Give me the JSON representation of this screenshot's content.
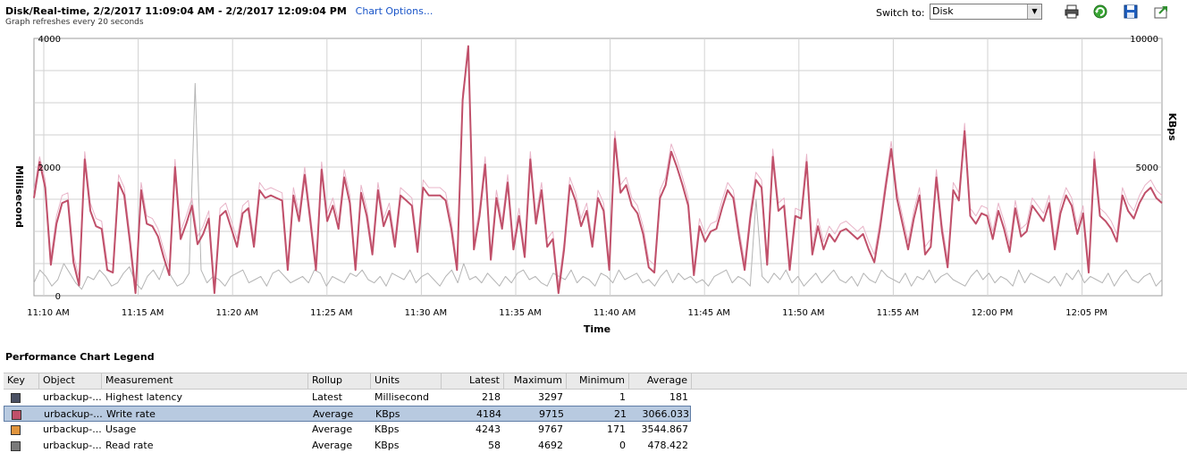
{
  "header": {
    "title": "Disk/Real-time, 2/2/2017 11:09:04 AM - 2/2/2017 12:09:04 PM",
    "chart_options_link": "Chart Options...",
    "subtitle": "Graph refreshes every 20 seconds",
    "switch_to_label": "Switch to:",
    "switch_to_value": "Disk"
  },
  "toolbar": {
    "icons": [
      "print-icon",
      "refresh-icon",
      "save-icon",
      "export-icon"
    ]
  },
  "chart_data": {
    "type": "line",
    "xlabel": "Time",
    "ylabel_left": "Millisecond",
    "ylabel_right": "KBps",
    "ylim_left": [
      0,
      4000
    ],
    "ylim_right": [
      0,
      10000
    ],
    "left_ticks": [
      "0",
      "2000",
      "4000"
    ],
    "right_ticks": [
      "5000",
      "10000"
    ],
    "x_ticks": [
      "11:10 AM",
      "11:15 AM",
      "11:20 AM",
      "11:25 AM",
      "11:30 AM",
      "11:35 AM",
      "11:40 AM",
      "11:45 AM",
      "11:50 AM",
      "11:55 AM",
      "12:00 PM",
      "12:05 PM"
    ],
    "grid": true,
    "series": [
      {
        "color": "#c0506a",
        "axis": "right",
        "values": [
          3800,
          5200,
          4200,
          1200,
          2800,
          3600,
          3700,
          1300,
          400,
          5300,
          3300,
          2700,
          2600,
          1000,
          900,
          4400,
          3900,
          2100,
          100,
          4100,
          2800,
          2700,
          2300,
          1500,
          800,
          5000,
          2200,
          2800,
          3500,
          2000,
          2400,
          3000,
          100,
          3100,
          3300,
          2600,
          1900,
          3200,
          3400,
          1900,
          4100,
          3800,
          3900,
          3800,
          3700,
          1000,
          3900,
          2900,
          4700,
          2900,
          1000,
          4900,
          2900,
          3500,
          2600,
          4600,
          3600,
          1000,
          4000,
          3100,
          1600,
          4100,
          2700,
          3300,
          1900,
          3900,
          3700,
          3500,
          1700,
          4200,
          3900,
          3900,
          3900,
          3700,
          2600,
          1000,
          7600,
          9700,
          1800,
          3100,
          5100,
          1400,
          3800,
          2600,
          4400,
          1800,
          3100,
          1500,
          5300,
          2800,
          4100,
          1900,
          2200,
          100,
          1800,
          4300,
          3700,
          2700,
          3300,
          1900,
          3800,
          3300,
          1000,
          6100,
          4000,
          4300,
          3500,
          3200,
          2400,
          1100,
          900,
          3800,
          4300,
          5600,
          5000,
          4300,
          3500,
          800,
          2700,
          2100,
          2500,
          2600,
          3400,
          4100,
          3800,
          2300,
          1000,
          3000,
          4500,
          4200,
          1200,
          5400,
          3300,
          3500,
          1000,
          3100,
          3000,
          5200,
          1600,
          2700,
          1800,
          2400,
          2100,
          2500,
          2600,
          2400,
          2200,
          2400,
          1800,
          1300,
          2600,
          4200,
          5700,
          3800,
          2800,
          1800,
          3000,
          3900,
          1600,
          1900,
          4600,
          2500,
          1100,
          4100,
          3700,
          6400,
          3100,
          2800,
          3200,
          3100,
          2200,
          3300,
          2600,
          1700,
          3400,
          2300,
          2500,
          3500,
          3200,
          2900,
          3600,
          1800,
          3200,
          3900,
          3500,
          2400,
          3200,
          900,
          5300,
          3100,
          2900,
          2600,
          2100,
          3900,
          3300,
          3000,
          3600,
          4000,
          4200,
          3800,
          3600
        ]
      },
      {
        "color": "#e8b4c8",
        "axis": "right",
        "values": [
          4100,
          5400,
          4500,
          1500,
          3100,
          3900,
          4000,
          1600,
          700,
          5600,
          3600,
          3000,
          2900,
          1300,
          1200,
          4700,
          4200,
          2400,
          400,
          4400,
          3100,
          3000,
          2600,
          1800,
          1100,
          5300,
          2500,
          3100,
          3800,
          2300,
          2700,
          3300,
          400,
          3400,
          3600,
          2900,
          2200,
          3500,
          3700,
          2200,
          4400,
          4100,
          4200,
          4100,
          4000,
          1300,
          4200,
          3200,
          5000,
          3200,
          1300,
          5200,
          3200,
          3800,
          2900,
          4900,
          3900,
          1300,
          4300,
          3400,
          1900,
          4400,
          3000,
          3600,
          2200,
          4200,
          4000,
          3800,
          2000,
          4500,
          4200,
          4200,
          4200,
          4000,
          2900,
          1300,
          7900,
          9500,
          2100,
          3400,
          5400,
          1700,
          4100,
          2900,
          4700,
          2100,
          3400,
          1800,
          5600,
          3100,
          4400,
          2200,
          2500,
          400,
          2100,
          4600,
          4000,
          3000,
          3600,
          2200,
          4100,
          3600,
          1300,
          6400,
          4300,
          4600,
          3800,
          3500,
          2700,
          1400,
          1200,
          4100,
          4600,
          5900,
          5300,
          4600,
          3800,
          1100,
          3000,
          2400,
          2800,
          2900,
          3700,
          4400,
          4100,
          2600,
          1300,
          3300,
          4800,
          4500,
          1500,
          5700,
          3600,
          3800,
          1300,
          3400,
          3300,
          5500,
          1900,
          3000,
          2100,
          2700,
          2400,
          2800,
          2900,
          2700,
          2500,
          2700,
          2100,
          1600,
          2900,
          4500,
          6000,
          4100,
          3100,
          2100,
          3300,
          4200,
          1900,
          2200,
          4900,
          2800,
          1400,
          4400,
          4000,
          6700,
          3400,
          3100,
          3500,
          3400,
          2500,
          3600,
          2900,
          2000,
          3700,
          2600,
          2800,
          3800,
          3500,
          3200,
          3900,
          2100,
          3500,
          4200,
          3800,
          2700,
          3500,
          1200,
          5600,
          3400,
          3200,
          2900,
          2400,
          4200,
          3600,
          3300,
          3900,
          4300,
          4500,
          4100,
          3900
        ]
      },
      {
        "color": "#b4b4b4",
        "axis": "left",
        "values": [
          200,
          400,
          300,
          150,
          250,
          500,
          350,
          200,
          100,
          300,
          250,
          400,
          300,
          150,
          200,
          350,
          450,
          200,
          100,
          300,
          400,
          250,
          500,
          300,
          150,
          200,
          350,
          3300,
          400,
          200,
          300,
          250,
          150,
          300,
          350,
          400,
          200,
          250,
          300,
          150,
          350,
          400,
          300,
          200,
          250,
          300,
          200,
          400,
          350,
          150,
          300,
          250,
          200,
          350,
          300,
          400,
          250,
          200,
          300,
          150,
          350,
          300,
          250,
          400,
          200,
          300,
          350,
          250,
          150,
          300,
          400,
          200,
          500,
          250,
          300,
          200,
          350,
          250,
          150,
          300,
          200,
          350,
          400,
          250,
          300,
          200,
          150,
          350,
          300,
          250,
          400,
          200,
          300,
          250,
          150,
          350,
          300,
          200,
          400,
          250,
          300,
          350,
          200,
          250,
          150,
          300,
          400,
          200,
          350,
          250,
          300,
          200,
          250,
          150,
          300,
          350,
          400,
          200,
          300,
          250,
          150,
          1500,
          300,
          200,
          350,
          250,
          400,
          200,
          300,
          150,
          250,
          350,
          200,
          300,
          400,
          250,
          200,
          300,
          150,
          350,
          250,
          200,
          400,
          300,
          250,
          200,
          350,
          150,
          300,
          250,
          400,
          200,
          300,
          350,
          250,
          200,
          150,
          300,
          400,
          250,
          350,
          200,
          300,
          250,
          150,
          400,
          200,
          350,
          300,
          250,
          200,
          300,
          150,
          350,
          250,
          400,
          200,
          300,
          250,
          200,
          350,
          150,
          300,
          400,
          250,
          200,
          300,
          350,
          150,
          250
        ]
      }
    ]
  },
  "legend": {
    "title": "Performance Chart Legend",
    "columns": [
      "Key",
      "Object",
      "Measurement",
      "Rollup",
      "Units",
      "Latest",
      "Maximum",
      "Minimum",
      "Average"
    ],
    "rows": [
      {
        "key_color": "#4a5063",
        "object": "urbackup-...",
        "measurement": "Highest latency",
        "rollup": "Latest",
        "units": "Millisecond",
        "latest": "218",
        "maximum": "3297",
        "minimum": "1",
        "average": "181",
        "selected": false
      },
      {
        "key_color": "#c0506a",
        "object": "urbackup-...",
        "measurement": "Write rate",
        "rollup": "Average",
        "units": "KBps",
        "latest": "4184",
        "maximum": "9715",
        "minimum": "21",
        "average": "3066.033",
        "selected": true
      },
      {
        "key_color": "#e0943c",
        "object": "urbackup-...",
        "measurement": "Usage",
        "rollup": "Average",
        "units": "KBps",
        "latest": "4243",
        "maximum": "9767",
        "minimum": "171",
        "average": "3544.867",
        "selected": false
      },
      {
        "key_color": "#7a7a7a",
        "object": "urbackup-...",
        "measurement": "Read rate",
        "rollup": "Average",
        "units": "KBps",
        "latest": "58",
        "maximum": "4692",
        "minimum": "0",
        "average": "478.422",
        "selected": false
      }
    ]
  }
}
